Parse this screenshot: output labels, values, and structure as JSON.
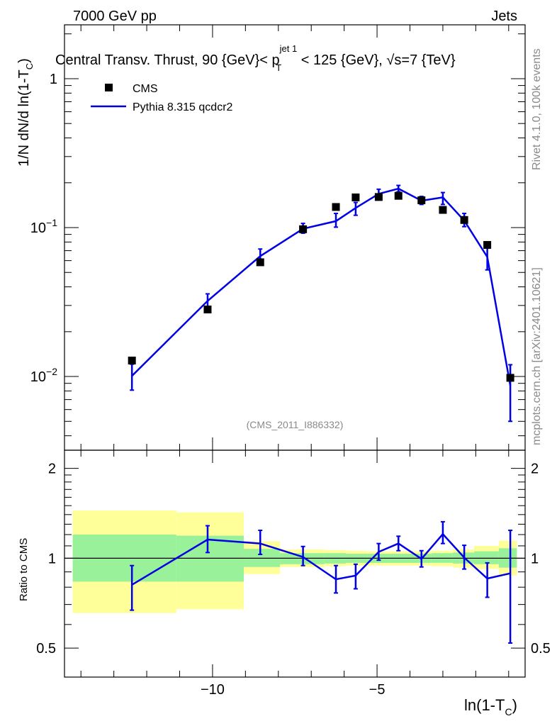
{
  "header": {
    "energy_label": "7000 GeV pp",
    "process_label": "Jets",
    "title_a": "Central Transv. Thrust, 90 {GeV}< p",
    "title_sup": "jet 1",
    "title_sub": "T",
    "title_b": " < 125 {GeV}, ",
    "title_sqrt": "√s",
    "title_c": "=7 {TeV}"
  },
  "side": {
    "rivet": "Rivet 4.1.0,  100k events",
    "mcplots": "mcplots.cern.ch [arXiv:2401.10621]"
  },
  "watermark": "(CMS_2011_I886332)",
  "legend": {
    "data_label": "CMS",
    "mc_label": "Pythia 8.315 qcdcr2"
  },
  "axes": {
    "y_main_a": "1/N    dN/d ln(1-T",
    "y_main_sub": "C",
    "y_main_b": ")",
    "x_a": "ln(1-T",
    "x_sub": "C",
    "x_b": ")",
    "y_ratio": "Ratio to CMS"
  },
  "colors": {
    "mc": "#0000e6",
    "data": "#000000",
    "band_inner": "#99f299",
    "band_outer": "#ffff99"
  },
  "chart_data": [
    {
      "type": "scatter",
      "title": "Central Transv. Thrust",
      "xlim": [
        -14.5,
        -0.5
      ],
      "ylim": [
        0.0032,
        2.3
      ],
      "yscale": "log",
      "x_ticks": [
        -10,
        -5
      ],
      "x_tick_labels": [
        "−10",
        "−5"
      ],
      "y_ticks": [
        0.01,
        0.1,
        1
      ],
      "y_tick_base": [
        "10",
        "10",
        "1"
      ],
      "y_tick_exp": [
        "−2",
        "−1",
        ""
      ],
      "series": [
        {
          "name": "CMS",
          "x": [
            -12.45,
            -10.15,
            -8.55,
            -7.25,
            -6.25,
            -5.65,
            -4.95,
            -4.35,
            -3.65,
            -3.0,
            -2.35,
            -1.65,
            -0.95
          ],
          "y": [
            0.0128,
            0.0282,
            0.0585,
            0.0975,
            0.1375,
            0.1595,
            0.1605,
            0.1635,
            0.1525,
            0.1315,
            0.1125,
            0.0765,
            0.0098
          ]
        },
        {
          "name": "Pythia 8.315 qcdcr2",
          "x": [
            -12.45,
            -10.15,
            -8.55,
            -7.25,
            -6.25,
            -5.65,
            -4.95,
            -4.35,
            -3.65,
            -3.0,
            -2.35,
            -1.65,
            -0.95
          ],
          "y": [
            0.0101,
            0.0322,
            0.0643,
            0.0982,
            0.1105,
            0.1355,
            0.1685,
            0.1825,
            0.1515,
            0.1595,
            0.1115,
            0.0635,
            0.0087
          ],
          "err_low": [
            0.002,
            0.0032,
            0.0047,
            0.0065,
            0.0098,
            0.0145,
            0.0095,
            0.0085,
            0.0085,
            0.0165,
            0.01,
            0.0115,
            0.0037
          ],
          "err_high": [
            0.002,
            0.0037,
            0.0075,
            0.0085,
            0.014,
            0.012,
            0.0125,
            0.0095,
            0.0105,
            0.0125,
            0.013,
            0.0095,
            0.0033
          ]
        }
      ]
    },
    {
      "type": "line",
      "title": "Ratio to CMS",
      "xlim": [
        -14.5,
        -0.5
      ],
      "ylim": [
        0.4,
        2.3
      ],
      "yscale": "log",
      "y_ticks": [
        0.5,
        1,
        2
      ],
      "y_tick_labels": [
        "0.5",
        "1",
        "2"
      ],
      "reference": 1.0,
      "bands": [
        {
          "x0": -14.25,
          "x1": -11.1,
          "in_lo": 0.835,
          "in_hi": 1.2,
          "out_lo": 0.655,
          "out_hi": 1.445
        },
        {
          "x0": -11.1,
          "x1": -9.05,
          "in_lo": 0.835,
          "in_hi": 1.19,
          "out_lo": 0.675,
          "out_hi": 1.425
        },
        {
          "x0": -9.05,
          "x1": -7.95,
          "in_lo": 0.935,
          "in_hi": 1.075,
          "out_lo": 0.885,
          "out_hi": 1.14
        },
        {
          "x0": -7.95,
          "x1": -6.6,
          "in_lo": 0.955,
          "in_hi": 1.04,
          "out_lo": 0.935,
          "out_hi": 1.07
        },
        {
          "x0": -6.6,
          "x1": -5.95,
          "in_lo": 0.96,
          "in_hi": 1.04,
          "out_lo": 0.94,
          "out_hi": 1.065
        },
        {
          "x0": -5.95,
          "x1": -5.3,
          "in_lo": 0.965,
          "in_hi": 1.035,
          "out_lo": 0.945,
          "out_hi": 1.06
        },
        {
          "x0": -5.3,
          "x1": -4.65,
          "in_lo": 0.965,
          "in_hi": 1.035,
          "out_lo": 0.945,
          "out_hi": 1.055
        },
        {
          "x0": -4.65,
          "x1": -4.0,
          "in_lo": 0.965,
          "in_hi": 1.035,
          "out_lo": 0.945,
          "out_hi": 1.055
        },
        {
          "x0": -4.0,
          "x1": -3.35,
          "in_lo": 0.965,
          "in_hi": 1.035,
          "out_lo": 0.945,
          "out_hi": 1.055
        },
        {
          "x0": -3.35,
          "x1": -2.7,
          "in_lo": 0.965,
          "in_hi": 1.04,
          "out_lo": 0.94,
          "out_hi": 1.06
        },
        {
          "x0": -2.7,
          "x1": -2.05,
          "in_lo": 0.96,
          "in_hi": 1.045,
          "out_lo": 0.93,
          "out_hi": 1.07
        },
        {
          "x0": -2.05,
          "x1": -1.3,
          "in_lo": 0.955,
          "in_hi": 1.055,
          "out_lo": 0.92,
          "out_hi": 1.1
        },
        {
          "x0": -1.3,
          "x1": -0.75,
          "in_lo": 0.93,
          "in_hi": 1.08,
          "out_lo": 0.875,
          "out_hi": 1.145
        }
      ],
      "series": [
        {
          "name": "Pythia 8.315 qcdcr2 / CMS",
          "x": [
            -12.45,
            -10.15,
            -8.55,
            -7.25,
            -6.25,
            -5.65,
            -4.95,
            -4.35,
            -3.65,
            -3.0,
            -2.35,
            -1.65,
            -0.95
          ],
          "y": [
            0.815,
            1.155,
            1.12,
            1.01,
            0.85,
            0.875,
            1.05,
            1.12,
            0.995,
            1.205,
            1.005,
            0.855,
            0.89
          ],
          "err_low": [
            0.145,
            0.11,
            0.09,
            0.065,
            0.085,
            0.085,
            0.065,
            0.06,
            0.06,
            0.085,
            0.085,
            0.115,
            0.37
          ],
          "err_high": [
            0.13,
            0.13,
            0.12,
            0.085,
            0.095,
            0.08,
            0.07,
            0.065,
            0.065,
            0.12,
            0.1,
            0.11,
            0.35
          ]
        }
      ]
    }
  ]
}
